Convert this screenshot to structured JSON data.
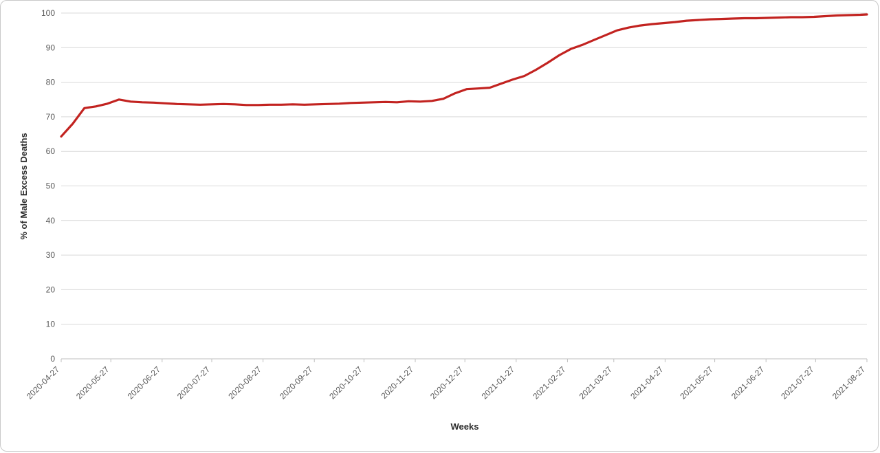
{
  "chart_data": {
    "type": "line",
    "title": "",
    "xlabel": "Weeks",
    "ylabel": "% of Male Excess Deaths",
    "ylim": [
      0,
      100
    ],
    "ytick_step": 10,
    "grid": "horizontal",
    "legend": "none",
    "line_color": "#c22320",
    "grid_color": "#d9d9d9",
    "axis_color": "#bfbfbf",
    "tick_label_color": "#595959",
    "x_range": [
      "2020-04-27",
      "2021-08-27"
    ],
    "x_tick_labels": [
      "2020-04-27",
      "2020-05-27",
      "2020-06-27",
      "2020-07-27",
      "2020-08-27",
      "2020-09-27",
      "2020-10-27",
      "2020-11-27",
      "2020-12-27",
      "2021-01-27",
      "2021-02-27",
      "2021-03-27",
      "2021-04-27",
      "2021-05-27",
      "2021-06-27",
      "2021-07-27",
      "2021-08-27"
    ],
    "series": [
      {
        "name": "% of Male Excess Deaths",
        "x": [
          "2020-04-27",
          "2020-05-04",
          "2020-05-11",
          "2020-05-18",
          "2020-05-25",
          "2020-06-01",
          "2020-06-08",
          "2020-06-15",
          "2020-06-22",
          "2020-06-29",
          "2020-07-06",
          "2020-07-13",
          "2020-07-20",
          "2020-07-27",
          "2020-08-03",
          "2020-08-10",
          "2020-08-17",
          "2020-08-24",
          "2020-08-31",
          "2020-09-07",
          "2020-09-14",
          "2020-09-21",
          "2020-09-28",
          "2020-10-05",
          "2020-10-12",
          "2020-10-19",
          "2020-10-26",
          "2020-11-02",
          "2020-11-09",
          "2020-11-16",
          "2020-11-23",
          "2020-11-30",
          "2020-12-07",
          "2020-12-14",
          "2020-12-21",
          "2020-12-28",
          "2021-01-04",
          "2021-01-11",
          "2021-01-18",
          "2021-01-25",
          "2021-02-01",
          "2021-02-08",
          "2021-02-15",
          "2021-02-22",
          "2021-03-01",
          "2021-03-08",
          "2021-03-15",
          "2021-03-22",
          "2021-03-29",
          "2021-04-05",
          "2021-04-12",
          "2021-04-19",
          "2021-04-26",
          "2021-05-03",
          "2021-05-10",
          "2021-05-17",
          "2021-05-24",
          "2021-05-31",
          "2021-06-07",
          "2021-06-14",
          "2021-06-21",
          "2021-06-28",
          "2021-07-05",
          "2021-07-12",
          "2021-07-19",
          "2021-07-26",
          "2021-08-02",
          "2021-08-09",
          "2021-08-16",
          "2021-08-23",
          "2021-08-27"
        ],
        "values": [
          64.3,
          68.0,
          72.5,
          73.0,
          73.8,
          75.0,
          74.4,
          74.2,
          74.1,
          73.9,
          73.7,
          73.6,
          73.5,
          73.6,
          73.7,
          73.6,
          73.4,
          73.4,
          73.5,
          73.5,
          73.6,
          73.5,
          73.6,
          73.7,
          73.8,
          74.0,
          74.1,
          74.2,
          74.3,
          74.2,
          74.5,
          74.4,
          74.6,
          75.2,
          76.8,
          78.0,
          78.2,
          78.4,
          79.6,
          80.8,
          81.8,
          83.6,
          85.6,
          87.8,
          89.6,
          90.8,
          92.2,
          93.6,
          95.0,
          95.8,
          96.4,
          96.8,
          97.1,
          97.4,
          97.8,
          98.0,
          98.2,
          98.3,
          98.4,
          98.5,
          98.5,
          98.6,
          98.7,
          98.8,
          98.8,
          98.9,
          99.1,
          99.3,
          99.4,
          99.5,
          99.6
        ]
      }
    ]
  }
}
